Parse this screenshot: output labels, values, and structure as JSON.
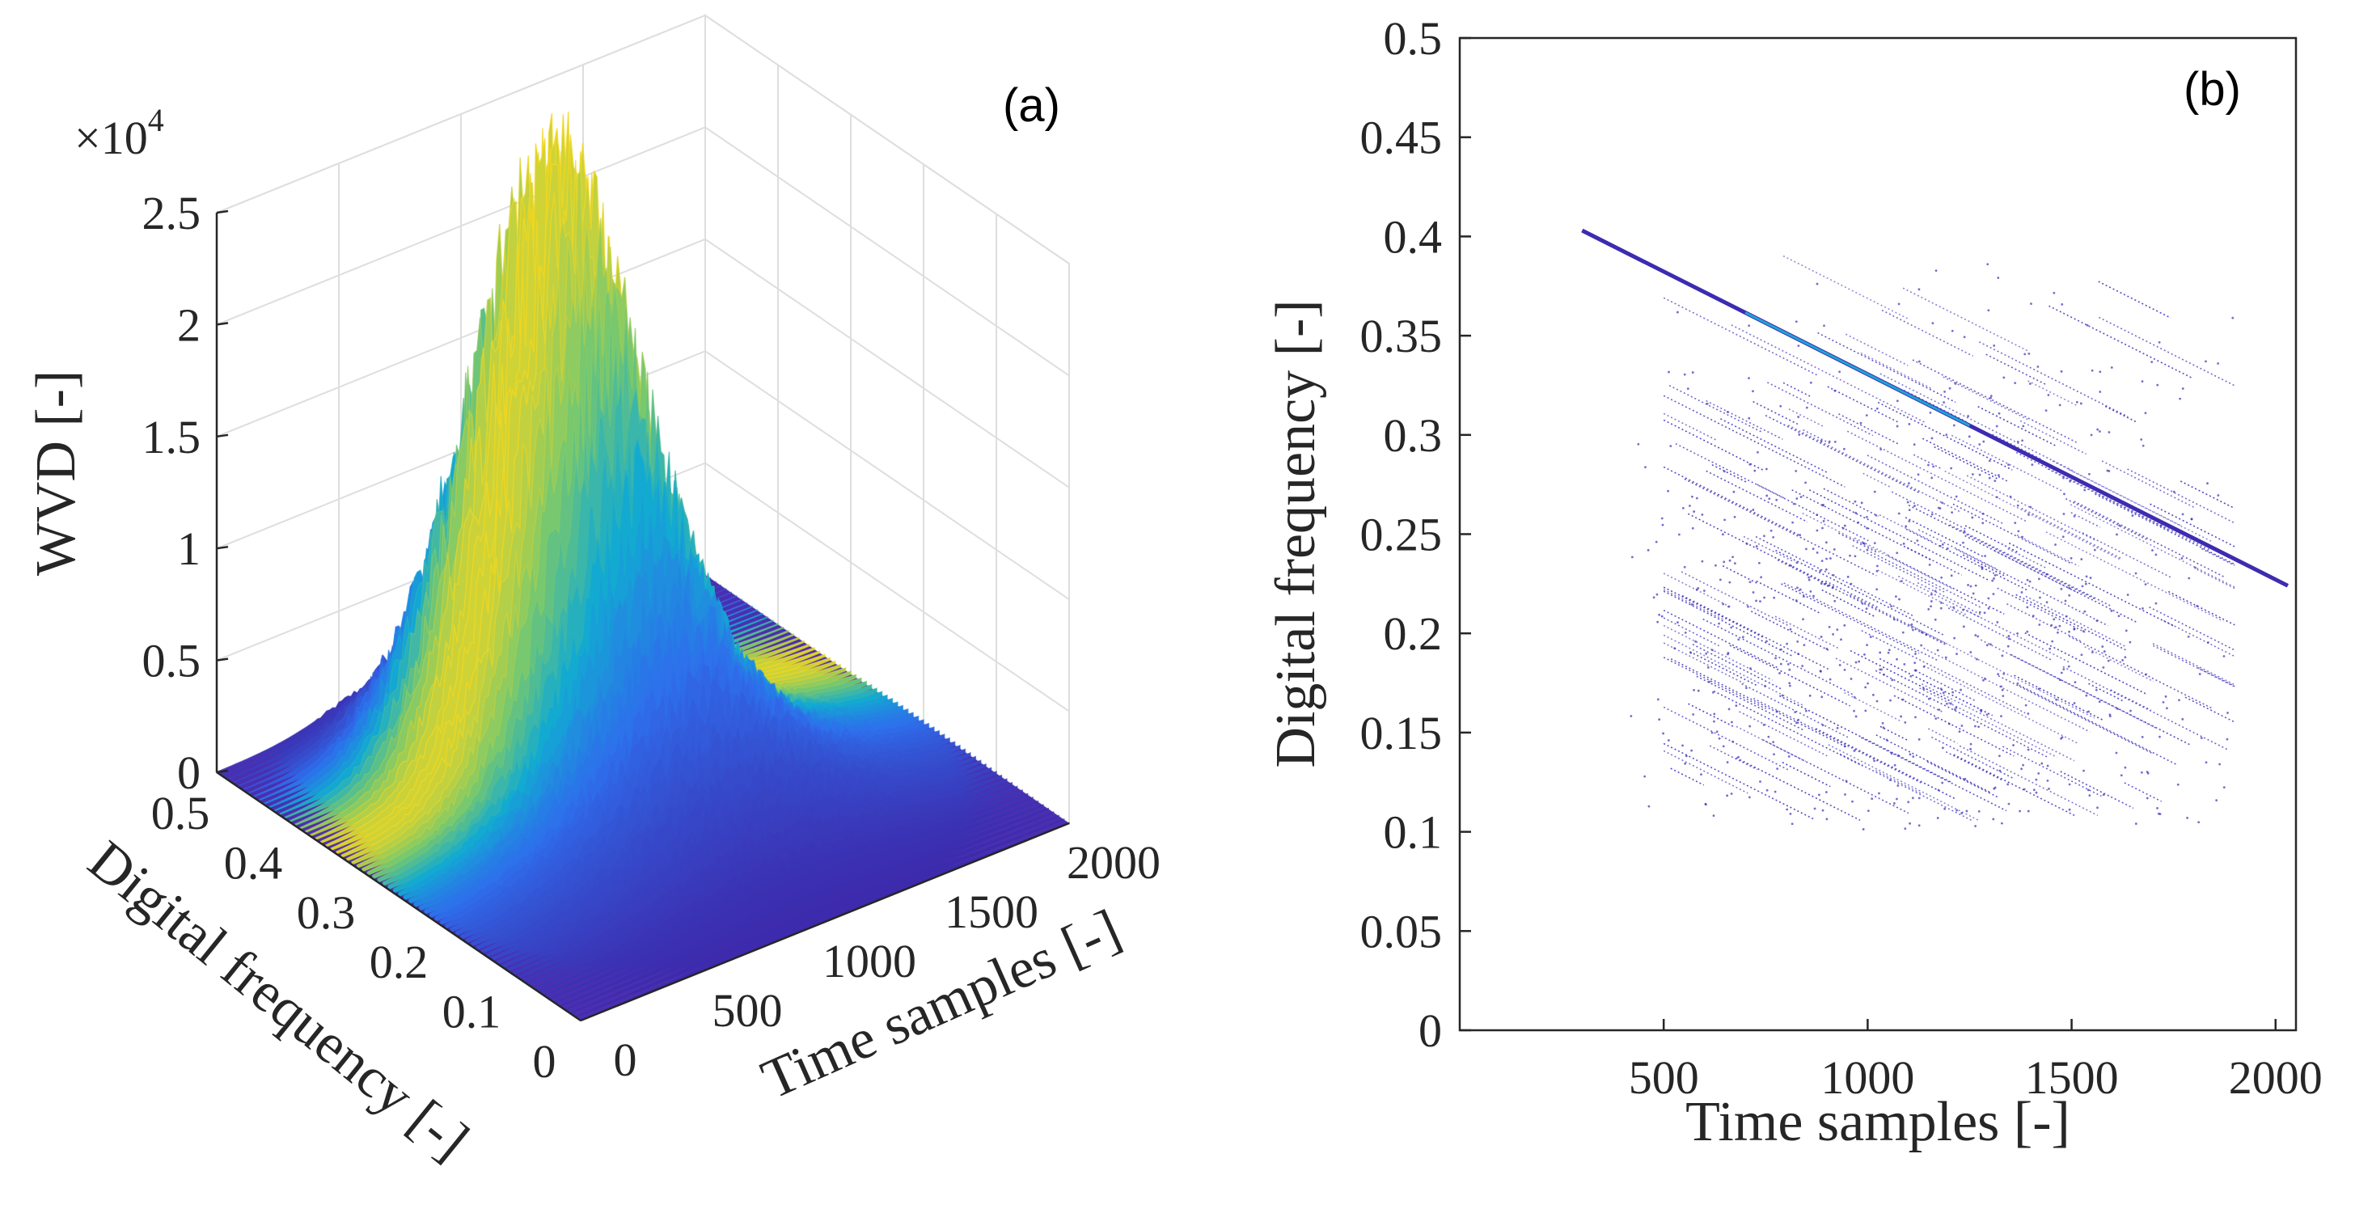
{
  "figure": {
    "colors": {
      "axis": "#262626",
      "grid": "#dedede",
      "surface_low": "#3e26a8",
      "surface_mid": "#1fa5d6",
      "surface_high": "#f5d21f",
      "scatter": "#3b2fb8"
    }
  },
  "chart_data": [
    {
      "id": "a",
      "panel_label": "(a)",
      "type": "surface",
      "title": "",
      "xlabel": "Time samples [-]",
      "ylabel": "Digital frequency [-]",
      "zlabel": "WVD [-]",
      "z_multiplier": "×10",
      "z_multiplier_exp": "4",
      "xlim": [
        0,
        2000
      ],
      "ylim": [
        0,
        0.5
      ],
      "zlim": [
        0,
        2.5
      ],
      "x_ticks": [
        "0",
        "500",
        "1000",
        "1500",
        "2000"
      ],
      "y_ticks": [
        "0",
        "0.1",
        "0.2",
        "0.3",
        "0.4",
        "0.5"
      ],
      "z_ticks": [
        "0",
        "0.5",
        "1",
        "1.5",
        "2",
        "2.5"
      ],
      "grid": true,
      "peak": {
        "time": 900,
        "frequency": 0.33,
        "value": 2.35
      }
    },
    {
      "id": "b",
      "panel_label": "(b)",
      "type": "scatter",
      "title": "",
      "xlabel": "Time samples [-]",
      "ylabel": "Digital frequency [-]",
      "xlim": [
        0,
        2050
      ],
      "ylim": [
        0,
        0.5
      ],
      "x_ticks": [
        "500",
        "1000",
        "1500",
        "2000"
      ],
      "y_ticks": [
        "0",
        "0.05",
        "0.1",
        "0.15",
        "0.2",
        "0.25",
        "0.3",
        "0.35",
        "0.4",
        "0.45",
        "0.5"
      ],
      "grid": false,
      "main_ridge": {
        "x": [
          300,
          2030
        ],
        "y": [
          0.403,
          0.224
        ]
      },
      "scatter_cloud": {
        "x_range": [
          500,
          1900
        ],
        "y_range": [
          0.12,
          0.38
        ],
        "center": [
          1100,
          0.2
        ]
      }
    }
  ]
}
